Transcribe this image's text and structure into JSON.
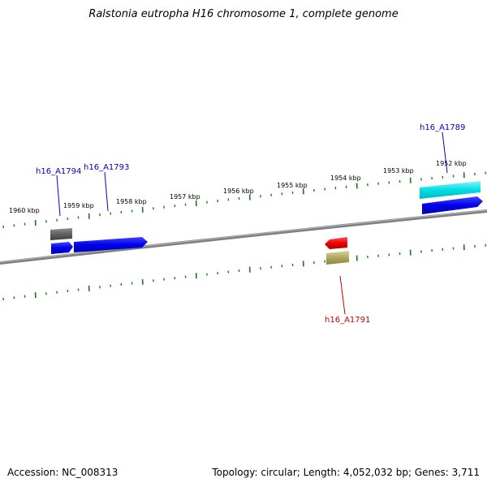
{
  "title": "Ralstonia eutropha H16 chromosome 1, complete genome",
  "footer": {
    "accession": "Accession: NC_008313",
    "stats": "Topology: circular; Length: 4,052,032 bp; Genes: 3,711"
  },
  "ruler_labels": [
    "1960 kbp",
    "1959 kbp",
    "1958 kbp",
    "1957 kbp",
    "1956 kbp",
    "1955 kbp",
    "1954 kbp",
    "1953 kbp",
    "1952 kbp"
  ],
  "gene_labels": [
    {
      "text": "h16_A1794",
      "color": "#0000cc"
    },
    {
      "text": "h16_A1793",
      "color": "#0000cc"
    },
    {
      "text": "h16_A1789",
      "color": "#0000cc"
    },
    {
      "text": "h16_A1791",
      "color": "#cc0000"
    }
  ],
  "colors": {
    "tick": "#1a7a1a",
    "backbone": "#808080",
    "gene_blue": "#0000ee",
    "gene_cyan": "#00d4dd",
    "gene_red": "#ee0000",
    "gene_olive": "#b0a860",
    "gene_gray": "#606060"
  }
}
